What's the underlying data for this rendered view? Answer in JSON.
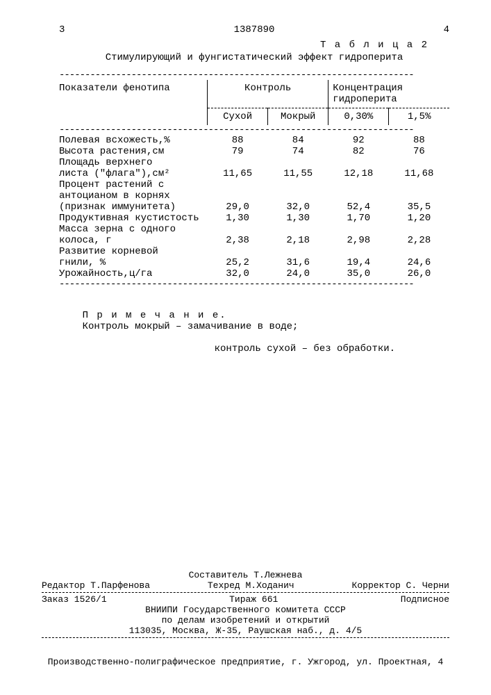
{
  "header": {
    "col_left": "3",
    "patent_no": "1387890",
    "col_right": "4",
    "table_label": "Т а б л и ц а  2",
    "caption": "Стимулирующий и фунгистатический эффект гидроперита"
  },
  "table": {
    "head": {
      "indicator": "Показатели фенотипа",
      "control": "Контроль",
      "concentration": "Концентрация гидроперита",
      "sub_dry": "Сухой",
      "sub_wet": "Мокрый",
      "sub_c1": "0,30%",
      "sub_c2": "1,5%"
    },
    "rows": [
      {
        "label": "Полевая всхожесть,%",
        "v": [
          "88",
          "84",
          "92",
          "88"
        ]
      },
      {
        "label": "Высота растения,см",
        "v": [
          "79",
          "74",
          "82",
          "76"
        ]
      },
      {
        "label": "Площадь верхнего\nлиста (\"флага\"),см²",
        "v": [
          "11,65",
          "11,55",
          "12,18",
          "11,68"
        ]
      },
      {
        "label": "Процент растений с\nантоцианом в корнях\n(признак иммунитета)",
        "v": [
          "29,0",
          "32,0",
          "52,4",
          "35,5"
        ]
      },
      {
        "label": "Продуктивная кустистость",
        "v": [
          "1,30",
          "1,30",
          "1,70",
          "1,20"
        ]
      },
      {
        "label": "Масса зерна с одного\nколоса, г",
        "v": [
          "2,38",
          "2,18",
          "2,98",
          "2,28"
        ]
      },
      {
        "label": "Развитие корневой\nгнили, %",
        "v": [
          "25,2",
          "31,6",
          "19,4",
          "24,6"
        ]
      },
      {
        "label": "Урожайность,ц/га",
        "v": [
          "32,0",
          "24,0",
          "35,0",
          "26,0"
        ]
      }
    ]
  },
  "note": {
    "lead": "П р и м е ч а н и е.",
    "text1": "Контроль мокрый – замачивание в воде;",
    "text2": "контроль сухой – без обработки."
  },
  "colophon": {
    "compiler": "Составитель Т.Лежнева",
    "editor": "Редактор Т.Парфенова",
    "techred": "Техред М.Ходанич",
    "corrector": "Корректор С. Черни",
    "order": "Заказ 1526/1",
    "tirazh": "Тираж 661",
    "podpis": "Подписное",
    "org1": "ВНИИПИ Государственного комитета СССР",
    "org2": "по делам изобретений и открытий",
    "addr": "113035, Москва, Ж-35, Раушская наб., д. 4/5"
  },
  "footer": "Производственно-полиграфическое предприятие, г. Ужгород, ул. Проектная, 4"
}
